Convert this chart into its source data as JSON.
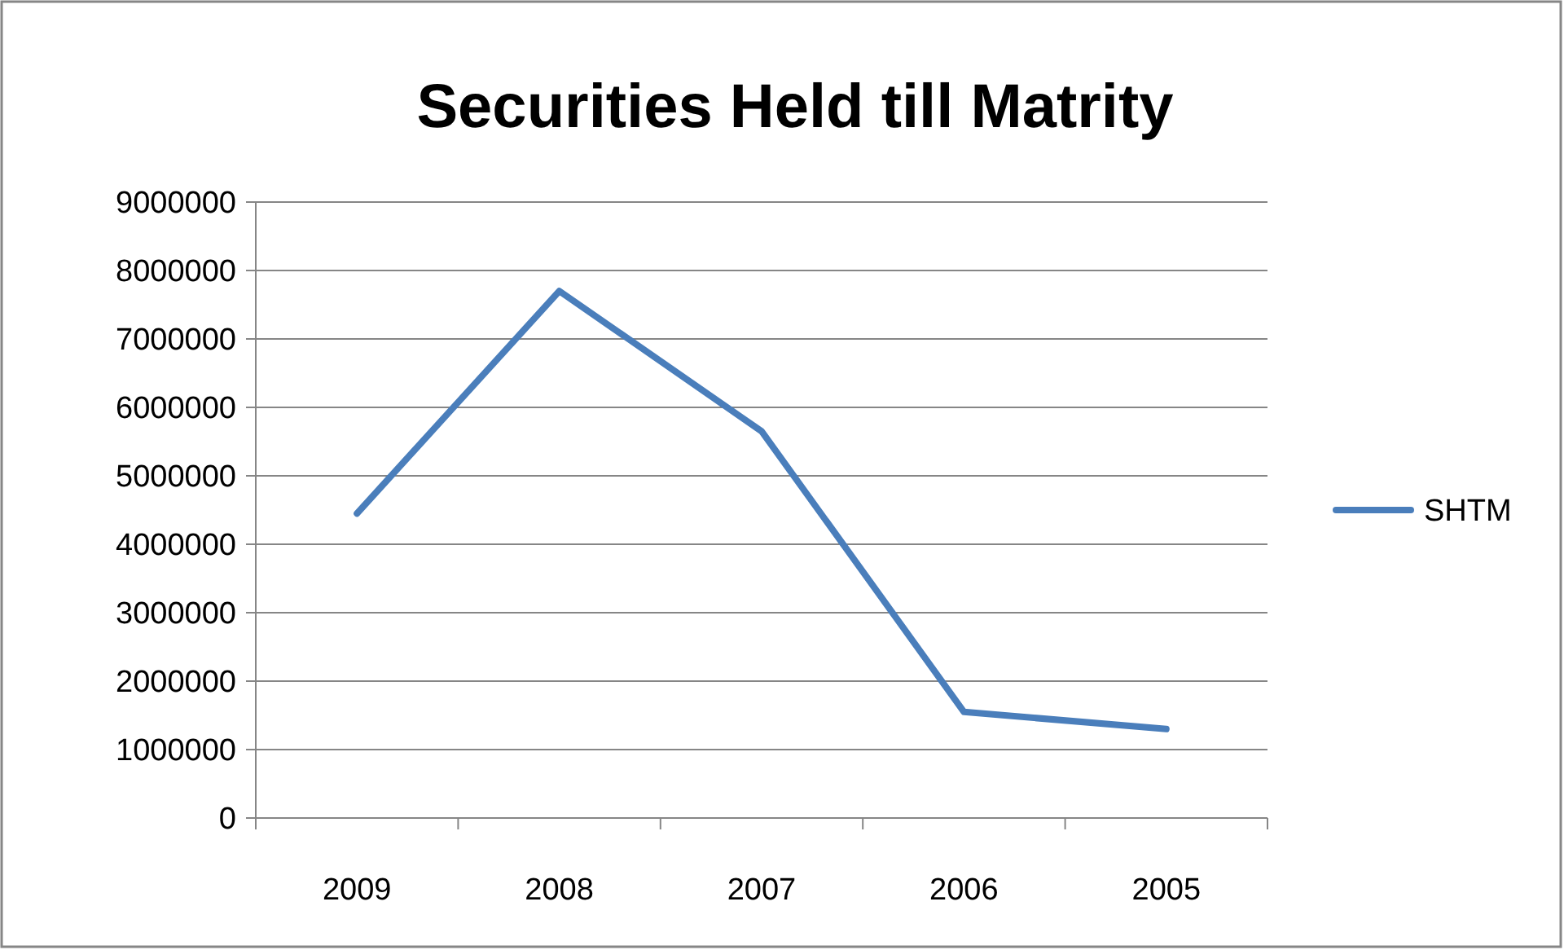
{
  "chart_data": {
    "type": "line",
    "title": "Securities Held till Matrity",
    "categories": [
      "2009",
      "2008",
      "2007",
      "2006",
      "2005"
    ],
    "series": [
      {
        "name": "SHTM",
        "color": "#4a7ebb",
        "values": [
          4450000,
          7700000,
          5650000,
          1550000,
          1300000
        ]
      }
    ],
    "ylim": [
      0,
      9000000
    ],
    "yticks": [
      0,
      1000000,
      2000000,
      3000000,
      4000000,
      5000000,
      6000000,
      7000000,
      8000000,
      9000000
    ],
    "grid": "y",
    "legend": "right",
    "marker": "none",
    "line_style": "solid"
  }
}
